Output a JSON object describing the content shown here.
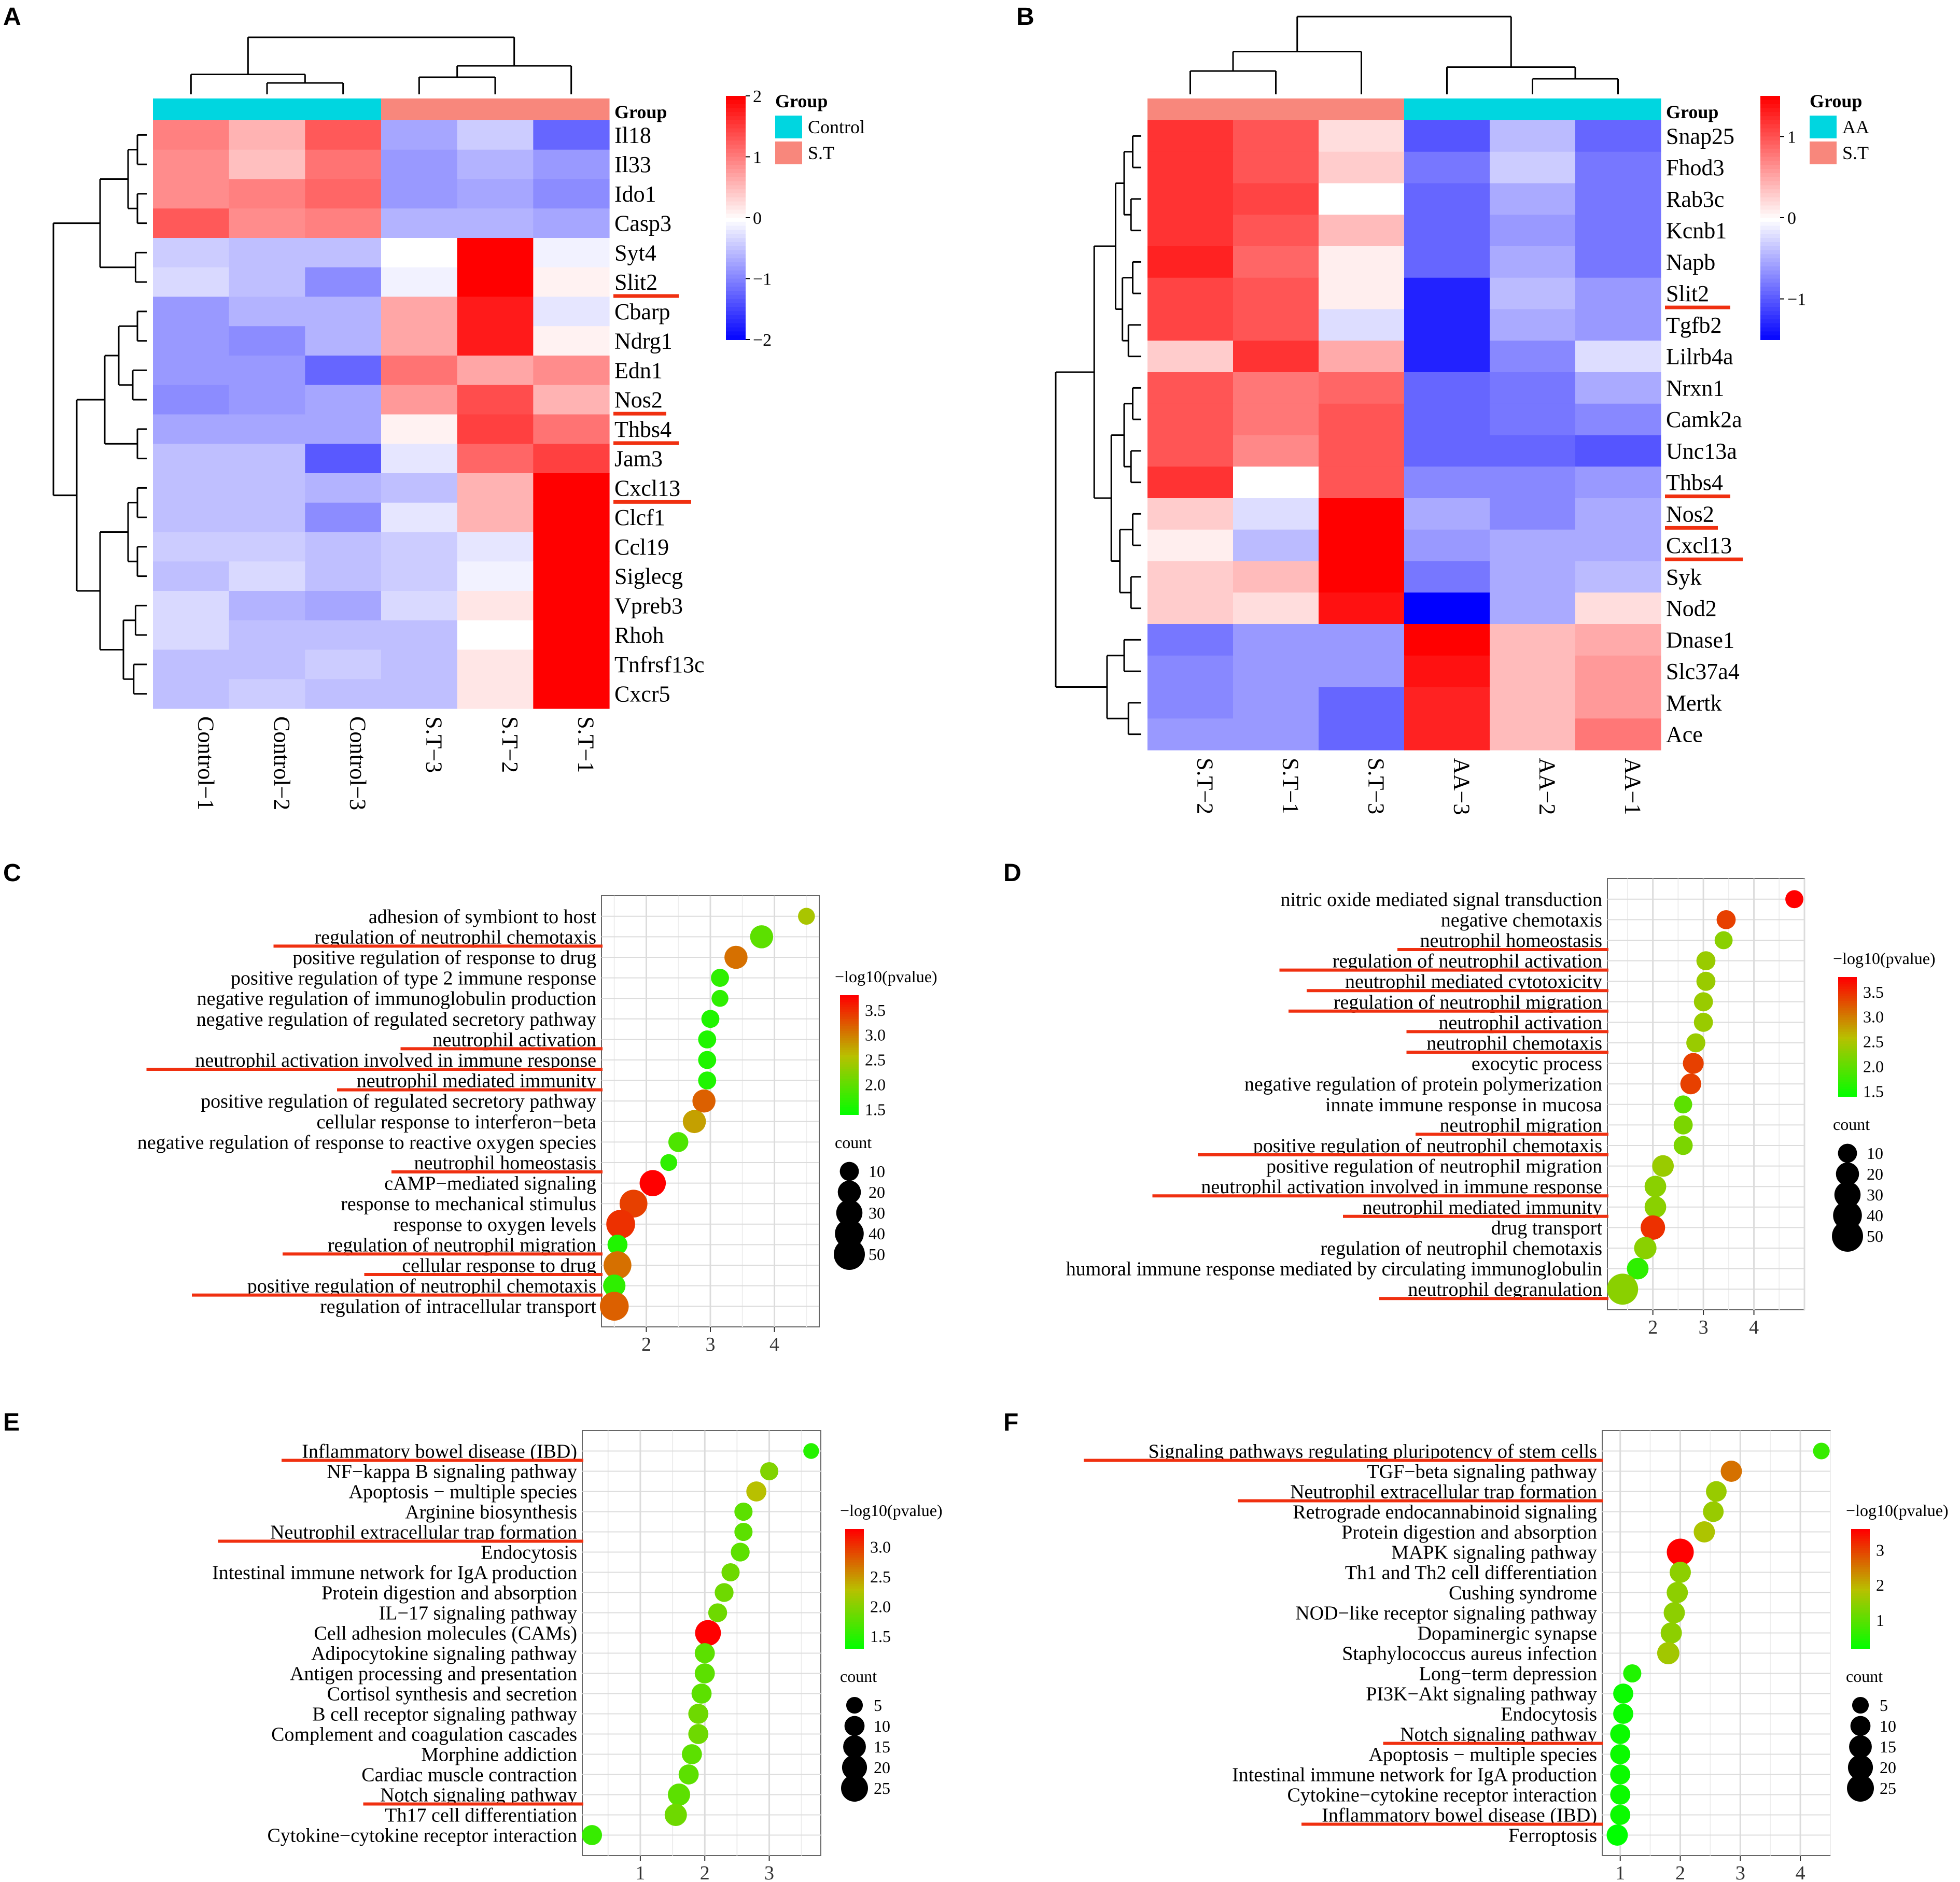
{
  "colors": {
    "blue": "#0000ff",
    "white": "#ffffff",
    "red": "#ff0000",
    "cyan": "#00d6e0",
    "salmon": "#f8877c",
    "underline": "#f03010",
    "lowp": "#00ff00",
    "highp": "#ff0000"
  },
  "panels": {
    "A": {
      "label": "A",
      "group_title": "Group",
      "legend_title": "Group",
      "legend_groups": [
        {
          "name": "Control",
          "color": "#00d6e0"
        },
        {
          "name": "S.T",
          "color": "#f8877c"
        }
      ],
      "scale_ticks": [
        "2",
        "1",
        "0",
        "−1",
        "−2"
      ],
      "column_groups": [
        "Control",
        "Control",
        "Control",
        "S.T",
        "S.T",
        "S.T"
      ]
    },
    "B": {
      "label": "B",
      "group_title": "Group",
      "legend_title": "Group",
      "legend_groups": [
        {
          "name": "AA",
          "color": "#00d6e0"
        },
        {
          "name": "S.T",
          "color": "#f8877c"
        }
      ],
      "scale_ticks": [
        "1",
        "0",
        "−1"
      ],
      "column_groups": [
        "S.T",
        "S.T",
        "S.T",
        "AA",
        "AA",
        "AA"
      ]
    },
    "C": {
      "label": "C"
    },
    "D": {
      "label": "D"
    },
    "E": {
      "label": "E"
    },
    "F": {
      "label": "F"
    }
  },
  "chart_data": [
    {
      "id": "A",
      "type": "heatmap",
      "title": "",
      "colorbar": [
        -2,
        2
      ],
      "columns": [
        "Control−1",
        "Control−2",
        "Control−3",
        "S.T−3",
        "S.T−2",
        "S.T−1"
      ],
      "rows": [
        "Il18",
        "Il33",
        "Ido1",
        "Casp3",
        "Syt4",
        "Slit2",
        "Cbarp",
        "Ndrg1",
        "Edn1",
        "Nos2",
        "Thbs4",
        "Jam3",
        "Cxcl13",
        "Clcf1",
        "Ccl19",
        "Siglecg",
        "Vpreb3",
        "Rhoh",
        "Tnfrsf13c",
        "Cxcr5"
      ],
      "underlined": [
        "Slit2",
        "Nos2",
        "Thbs4",
        "Cxcl13"
      ],
      "values": [
        [
          1.0,
          0.6,
          1.3,
          -0.7,
          -0.4,
          -1.2
        ],
        [
          0.9,
          0.5,
          1.1,
          -0.8,
          -0.6,
          -0.8
        ],
        [
          0.9,
          1.0,
          1.2,
          -0.8,
          -0.7,
          -0.9
        ],
        [
          1.3,
          0.9,
          1.0,
          -0.6,
          -0.6,
          -0.7
        ],
        [
          -0.4,
          -0.5,
          -0.5,
          0.0,
          2.0,
          -0.1
        ],
        [
          -0.3,
          -0.5,
          -0.9,
          -0.1,
          2.0,
          0.1
        ],
        [
          -0.8,
          -0.6,
          -0.6,
          0.7,
          1.8,
          -0.2
        ],
        [
          -0.8,
          -0.9,
          -0.6,
          0.7,
          1.8,
          0.1
        ],
        [
          -0.8,
          -0.8,
          -1.2,
          1.1,
          0.7,
          0.9
        ],
        [
          -0.9,
          -0.8,
          -0.7,
          0.8,
          1.4,
          0.6
        ],
        [
          -0.7,
          -0.7,
          -0.7,
          0.1,
          1.5,
          1.1
        ],
        [
          -0.5,
          -0.5,
          -1.3,
          -0.2,
          1.2,
          1.5
        ],
        [
          -0.5,
          -0.5,
          -0.6,
          -0.5,
          0.6,
          2.0
        ],
        [
          -0.5,
          -0.5,
          -0.9,
          -0.2,
          0.6,
          2.0
        ],
        [
          -0.4,
          -0.4,
          -0.5,
          -0.4,
          -0.2,
          2.0
        ],
        [
          -0.5,
          -0.3,
          -0.5,
          -0.4,
          -0.1,
          2.0
        ],
        [
          -0.3,
          -0.6,
          -0.7,
          -0.3,
          0.2,
          2.0
        ],
        [
          -0.3,
          -0.5,
          -0.5,
          -0.5,
          0.0,
          2.0
        ],
        [
          -0.5,
          -0.5,
          -0.4,
          -0.5,
          0.2,
          2.0
        ],
        [
          -0.5,
          -0.4,
          -0.5,
          -0.5,
          0.2,
          2.0
        ]
      ]
    },
    {
      "id": "B",
      "type": "heatmap",
      "title": "",
      "colorbar": [
        -1.5,
        1.5
      ],
      "columns": [
        "S.T−2",
        "S.T−1",
        "S.T−3",
        "AA−3",
        "AA−2",
        "AA−1"
      ],
      "rows": [
        "Snap25",
        "Fhod3",
        "Rab3c",
        "Kcnb1",
        "Napb",
        "Slit2",
        "Tgfb2",
        "Lilrb4a",
        "Nrxn1",
        "Camk2a",
        "Unc13a",
        "Thbs4",
        "Nos2",
        "Cxcl13",
        "Syk",
        "Nod2",
        "Dnase1",
        "Slc37a4",
        "Mertk",
        "Ace"
      ],
      "underlined": [
        "Slit2",
        "Thbs4",
        "Nos2",
        "Cxcl13"
      ],
      "values": [
        [
          1.2,
          1.0,
          0.2,
          -1.0,
          -0.4,
          -0.9
        ],
        [
          1.2,
          1.0,
          0.3,
          -0.8,
          -0.3,
          -0.8
        ],
        [
          1.2,
          1.1,
          0.0,
          -0.9,
          -0.5,
          -0.8
        ],
        [
          1.2,
          1.0,
          0.4,
          -0.9,
          -0.6,
          -0.8
        ],
        [
          1.3,
          0.9,
          0.1,
          -0.9,
          -0.5,
          -0.8
        ],
        [
          1.1,
          1.0,
          0.1,
          -1.3,
          -0.4,
          -0.6
        ],
        [
          1.1,
          1.0,
          -0.2,
          -1.3,
          -0.5,
          -0.6
        ],
        [
          0.3,
          1.2,
          0.5,
          -1.3,
          -0.7,
          -0.2
        ],
        [
          1.0,
          0.8,
          0.9,
          -0.9,
          -0.8,
          -0.5
        ],
        [
          1.0,
          0.8,
          1.0,
          -0.9,
          -0.8,
          -0.7
        ],
        [
          1.0,
          0.7,
          1.0,
          -0.9,
          -0.9,
          -1.0
        ],
        [
          1.2,
          0.0,
          1.0,
          -0.7,
          -0.7,
          -0.6
        ],
        [
          0.3,
          -0.2,
          1.5,
          -0.5,
          -0.7,
          -0.5
        ],
        [
          0.1,
          -0.4,
          1.5,
          -0.6,
          -0.5,
          -0.5
        ],
        [
          0.3,
          0.4,
          1.5,
          -0.8,
          -0.5,
          -0.4
        ],
        [
          0.3,
          0.2,
          1.4,
          -1.5,
          -0.5,
          0.2
        ],
        [
          -0.8,
          -0.6,
          -0.6,
          1.5,
          0.4,
          0.5
        ],
        [
          -0.7,
          -0.6,
          -0.6,
          1.4,
          0.4,
          0.6
        ],
        [
          -0.7,
          -0.6,
          -0.9,
          1.3,
          0.4,
          0.6
        ],
        [
          -0.6,
          -0.6,
          -0.9,
          1.3,
          0.4,
          0.8
        ]
      ]
    },
    {
      "id": "C",
      "type": "scatter",
      "title": "",
      "xlabel": "",
      "color_title": "−log10(pvalue)",
      "size_title": "count",
      "xlim": [
        1.3,
        4.7
      ],
      "xticks": [
        2,
        3,
        4
      ],
      "color_range": [
        1.4,
        3.8
      ],
      "color_ticks": [
        3.5,
        3.0,
        2.5,
        2.0,
        1.5
      ],
      "size_ticks": [
        10,
        20,
        30,
        40,
        50
      ],
      "terms": [
        "adhesion of symbiont to host",
        "regulation of neutrophil chemotaxis",
        "positive regulation of response to drug",
        "positive regulation of type 2 immune response",
        "negative regulation of immunoglobulin production",
        "negative regulation of regulated secretory pathway",
        "neutrophil activation",
        "neutrophil activation involved in immune response",
        "neutrophil mediated immunity",
        "positive regulation of regulated secretory pathway",
        "cellular response to interferon−beta",
        "negative regulation of response to reactive oxygen species",
        "neutrophil homeostasis",
        "cAMP−mediated signaling",
        "response to mechanical stimulus",
        "response to oxygen levels",
        "regulation of neutrophil migration",
        "cellular response to drug",
        "positive regulation of neutrophil chemotaxis",
        "regulation of intracellular transport"
      ],
      "x": [
        4.5,
        3.8,
        3.4,
        3.15,
        3.15,
        3.0,
        2.95,
        2.95,
        2.95,
        2.9,
        2.75,
        2.5,
        2.35,
        2.1,
        1.8,
        1.6,
        1.55,
        1.55,
        1.5,
        1.5
      ],
      "color": [
        2.5,
        2.0,
        3.1,
        1.7,
        1.7,
        1.6,
        1.6,
        1.6,
        1.6,
        3.2,
        2.8,
        1.9,
        1.7,
        3.8,
        3.4,
        3.5,
        1.6,
        3.1,
        1.7,
        3.2
      ],
      "count": [
        6,
        20,
        20,
        8,
        6,
        8,
        8,
        8,
        8,
        20,
        20,
        12,
        6,
        30,
        36,
        40,
        12,
        36,
        18,
        40
      ],
      "underlined": [
        1,
        6,
        7,
        8,
        12,
        16,
        17,
        18
      ]
    },
    {
      "id": "D",
      "type": "scatter",
      "title": "",
      "xlabel": "",
      "color_title": "−log10(pvalue)",
      "size_title": "count",
      "xlim": [
        1.1,
        5.0
      ],
      "xticks": [
        2,
        3,
        4
      ],
      "color_range": [
        1.4,
        3.8
      ],
      "color_ticks": [
        3.5,
        3.0,
        2.5,
        2.0,
        1.5
      ],
      "size_ticks": [
        10,
        20,
        30,
        40,
        50
      ],
      "terms": [
        "nitric oxide mediated signal transduction",
        "negative chemotaxis",
        "neutrophil homeostasis",
        "regulation of neutrophil activation",
        "neutrophil mediated cytotoxicity",
        "regulation of neutrophil migration",
        "neutrophil activation",
        "neutrophil chemotaxis",
        "exocytic process",
        "negative regulation of protein polymerization",
        "innate immune response in mucosa",
        "neutrophil migration",
        "positive regulation of neutrophil chemotaxis",
        "positive regulation of neutrophil migration",
        "neutrophil activation involved in immune response",
        "neutrophil mediated immunity",
        "drug transport",
        "regulation of neutrophil chemotaxis",
        "humoral immune response mediated by circulating immunoglobulin",
        "neutrophil degranulation"
      ],
      "x": [
        4.8,
        3.45,
        3.4,
        3.05,
        3.05,
        3.0,
        3.0,
        2.85,
        2.8,
        2.75,
        2.6,
        2.6,
        2.6,
        2.2,
        2.05,
        2.05,
        2.0,
        1.85,
        1.7,
        1.4
      ],
      "color": [
        3.9,
        3.4,
        2.3,
        2.4,
        2.4,
        2.4,
        2.4,
        2.4,
        3.4,
        3.4,
        2.0,
        2.2,
        2.2,
        2.4,
        2.3,
        2.3,
        3.5,
        2.3,
        1.7,
        2.3
      ],
      "count": [
        8,
        10,
        8,
        10,
        10,
        10,
        10,
        10,
        14,
        14,
        8,
        10,
        10,
        16,
        16,
        16,
        24,
        18,
        16,
        50
      ],
      "underlined": [
        2,
        3,
        4,
        5,
        6,
        7,
        11,
        12,
        14,
        15,
        19
      ]
    },
    {
      "id": "E",
      "type": "scatter",
      "title": "",
      "xlabel": "",
      "color_title": "−log10(pvalue)",
      "size_title": "count",
      "xlim": [
        0.1,
        3.8
      ],
      "xticks": [
        1,
        2,
        3
      ],
      "color_range": [
        1.3,
        3.3
      ],
      "color_ticks": [
        3.0,
        2.5,
        2.0,
        1.5
      ],
      "size_ticks": [
        5,
        10,
        15,
        20,
        25
      ],
      "terms": [
        "Inflammatory bowel disease (IBD)",
        "NF−kappa B signaling pathway",
        "Apoptosis − multiple species",
        "Arginine biosynthesis",
        "Neutrophil extracellular trap formation",
        "Endocytosis",
        "Intestinal immune network for IgA production",
        "Protein digestion and absorption",
        "IL−17 signaling pathway",
        "Cell adhesion molecules (CAMs)",
        "Adipocytokine signaling pathway",
        "Antigen processing and presentation",
        "Cortisol synthesis and secretion",
        "B cell receptor signaling pathway",
        "Complement and coagulation cascades",
        "Morphine addiction",
        "Cardiac muscle contraction",
        "Notch signaling pathway",
        "Th17 cell differentiation",
        "Cytokine−cytokine receptor interaction"
      ],
      "x": [
        3.65,
        3.0,
        2.8,
        2.6,
        2.6,
        2.55,
        2.4,
        2.3,
        2.2,
        2.05,
        2.0,
        2.0,
        1.95,
        1.9,
        1.9,
        1.8,
        1.75,
        1.6,
        1.55,
        0.25
      ],
      "color": [
        1.5,
        2.0,
        2.3,
        1.8,
        1.8,
        1.8,
        1.9,
        1.9,
        1.9,
        3.3,
        1.8,
        1.8,
        1.8,
        1.9,
        1.9,
        1.8,
        1.8,
        1.8,
        1.9,
        1.6
      ],
      "count": [
        4,
        7,
        10,
        7,
        7,
        8,
        7,
        8,
        8,
        22,
        10,
        10,
        10,
        10,
        10,
        10,
        10,
        14,
        14,
        10
      ],
      "underlined": [
        0,
        4,
        17
      ]
    },
    {
      "id": "F",
      "type": "scatter",
      "title": "",
      "xlabel": "",
      "color_title": "−log10(pvalue)",
      "size_title": "count",
      "xlim": [
        0.7,
        4.5
      ],
      "xticks": [
        1,
        2,
        3,
        4
      ],
      "color_range": [
        0.2,
        3.6
      ],
      "color_ticks": [
        3,
        2,
        1
      ],
      "size_ticks": [
        5,
        10,
        15,
        20,
        25
      ],
      "terms": [
        "Signaling pathways regulating pluripotency of stem cells",
        "TGF−beta signaling pathway",
        "Neutrophil extracellular trap formation",
        "Retrograde endocannabinoid signaling",
        "Protein digestion and absorption",
        "MAPK signaling pathway",
        "Th1 and Th2 cell differentiation",
        "Cushing syndrome",
        "NOD−like receptor signaling pathway",
        "Dopaminergic synapse",
        "Staphylococcus aureus infection",
        "Long−term depression",
        "PI3K−Akt signaling pathway",
        "Endocytosis",
        "Notch signaling pathway",
        "Apoptosis − multiple species",
        "Intestinal immune network for IgA production",
        "Cytokine−cytokine receptor interaction",
        "Inflammatory bowel disease (IBD)",
        "Ferroptosis"
      ],
      "x": [
        4.35,
        2.85,
        2.6,
        2.55,
        2.4,
        2.0,
        2.0,
        1.95,
        1.9,
        1.85,
        1.8,
        1.2,
        1.05,
        1.05,
        1.0,
        1.0,
        1.0,
        1.0,
        1.0,
        0.95
      ],
      "color": [
        0.7,
        2.6,
        1.6,
        1.6,
        1.8,
        3.6,
        1.5,
        1.5,
        1.5,
        1.5,
        1.7,
        0.5,
        0.3,
        0.3,
        0.3,
        0.3,
        0.3,
        0.3,
        0.3,
        0.2
      ],
      "count": [
        5,
        12,
        11,
        11,
        12,
        25,
        12,
        12,
        12,
        12,
        14,
        7,
        10,
        10,
        10,
        10,
        10,
        10,
        10,
        12
      ],
      "underlined": [
        0,
        2,
        14,
        18
      ]
    }
  ]
}
